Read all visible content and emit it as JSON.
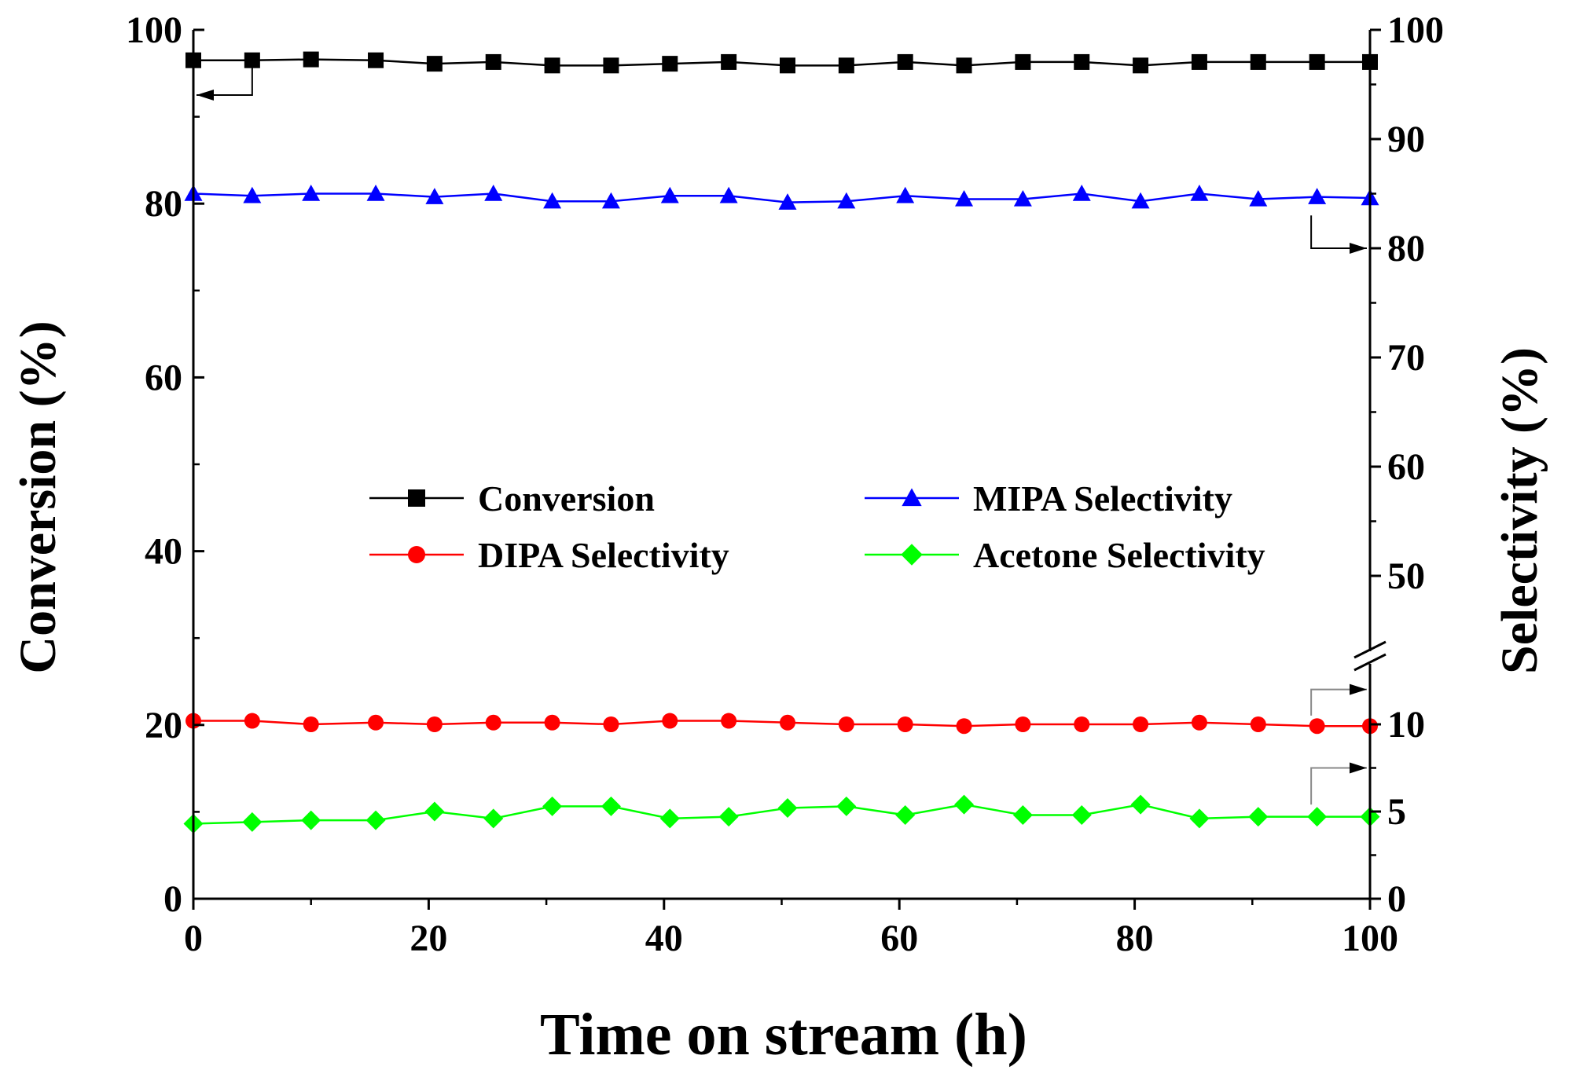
{
  "chart_data": {
    "type": "line",
    "title": "",
    "xlabel": "Time on stream (h)",
    "ylabel_left": "Conversion (%)",
    "ylabel_right": "Selectivity (%)",
    "xlim": [
      0,
      100
    ],
    "ylim_left": [
      0,
      100
    ],
    "right_axis": {
      "lower_segment": [
        0,
        12.5
      ],
      "upper_segment": [
        45,
        100
      ],
      "break_marker": "//"
    },
    "x_ticks": [
      0,
      20,
      40,
      60,
      80,
      100
    ],
    "x_tick_labels": [
      "0",
      "20",
      "40",
      "60",
      "80",
      "100"
    ],
    "y_left_ticks": [
      0,
      20,
      40,
      60,
      80,
      100
    ],
    "y_left_tick_labels": [
      "0",
      "20",
      "40",
      "60",
      "80",
      "100"
    ],
    "y_right_lower_ticks": [
      0,
      5,
      10
    ],
    "y_right_lower_tick_labels": [
      "0",
      "5",
      "10"
    ],
    "y_right_upper_ticks": [
      50,
      60,
      70,
      80,
      90,
      100
    ],
    "y_right_upper_tick_labels": [
      "50",
      "60",
      "70",
      "80",
      "90",
      "100"
    ],
    "legend_position": "center",
    "x": [
      0,
      5,
      10,
      15.5,
      20.5,
      25.5,
      30.5,
      35.5,
      40.5,
      45.5,
      50.5,
      55.5,
      60.5,
      65.5,
      70.5,
      75.5,
      80.5,
      85.5,
      90.5,
      95.5,
      100
    ],
    "series": [
      {
        "name": "Conversion",
        "axis": "left",
        "color": "#000000",
        "marker": "square",
        "values": [
          96.5,
          96.5,
          96.6,
          96.5,
          96.1,
          96.3,
          95.9,
          95.9,
          96.1,
          96.3,
          95.9,
          95.9,
          96.3,
          95.9,
          96.3,
          96.3,
          95.9,
          96.3,
          96.3,
          96.3,
          96.3
        ]
      },
      {
        "name": "MIPA Selectivity",
        "axis": "right",
        "color": "#0000ff",
        "marker": "triangle",
        "values": [
          85.0,
          84.8,
          85.0,
          85.0,
          84.7,
          85.0,
          84.3,
          84.3,
          84.8,
          84.8,
          84.2,
          84.3,
          84.8,
          84.5,
          84.5,
          85.0,
          84.3,
          85.0,
          84.5,
          84.7,
          84.6
        ]
      },
      {
        "name": "DIPA Selectivity",
        "axis": "right",
        "color": "#ff0000",
        "marker": "circle",
        "values": [
          10.2,
          10.2,
          10.0,
          10.1,
          10.0,
          10.1,
          10.1,
          10.0,
          10.2,
          10.2,
          10.1,
          10.0,
          10.0,
          9.9,
          10.0,
          10.0,
          10.0,
          10.1,
          10.0,
          9.9,
          9.9
        ]
      },
      {
        "name": "Acetone Selectivity",
        "axis": "right",
        "color": "#00ff00",
        "marker": "diamond",
        "values": [
          4.3,
          4.4,
          4.5,
          4.5,
          5.0,
          4.6,
          5.3,
          5.3,
          4.6,
          4.7,
          5.2,
          5.3,
          4.8,
          5.4,
          4.8,
          4.8,
          5.4,
          4.6,
          4.7,
          4.7,
          4.7
        ]
      }
    ]
  }
}
